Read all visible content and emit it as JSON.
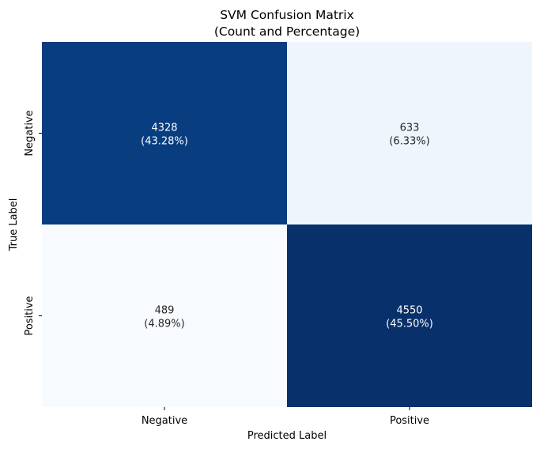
{
  "chart_data": {
    "type": "heatmap",
    "title": "SVM Confusion Matrix",
    "subtitle": "(Count and Percentage)",
    "xlabel": "Predicted Label",
    "ylabel": "True Label",
    "x_categories": [
      "Negative",
      "Positive"
    ],
    "y_categories": [
      "Negative",
      "Positive"
    ],
    "values": [
      [
        4328,
        633
      ],
      [
        489,
        4550
      ]
    ],
    "percent_labels": [
      [
        "(43.28%)",
        "(6.33%)"
      ],
      [
        "(4.89%)",
        "(45.50%)"
      ]
    ],
    "colormap": "Blues",
    "colorbar": false,
    "colors": {
      "cell_0_0": "#083d7f",
      "cell_0_1": "#eef5fd",
      "cell_1_0": "#f7fbff",
      "cell_1_1": "#08306b",
      "dark_cell_text": "#ffffff",
      "light_cell_text": "#262626"
    }
  }
}
